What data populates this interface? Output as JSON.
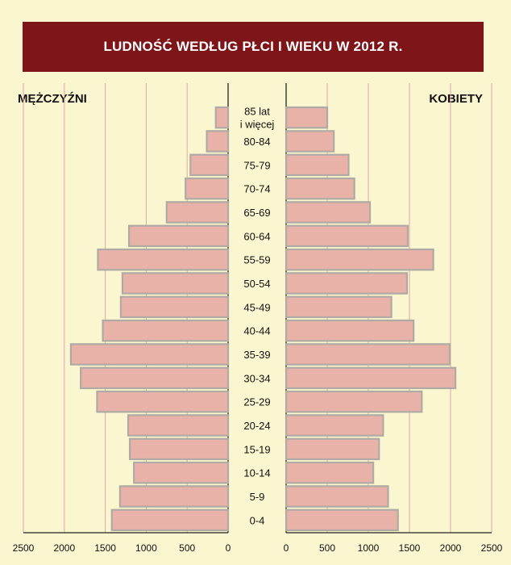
{
  "title": "LUDNOŚĆ WEDŁUG PŁCI I WIEKU W 2012 R.",
  "left_label": "MĘŻCZYŹNI",
  "right_label": "KOBIETY",
  "colors": {
    "title_bg": "#7e1518",
    "background": "#faf6cf",
    "bar_fill": "#e8b2a8",
    "bar_stroke": "#b0aaa5",
    "grid": "#e3a6a0"
  },
  "chart_data": {
    "type": "bar",
    "orientation": "horizontal-pyramid",
    "title": "LUDNOŚĆ WEDŁUG PŁCI I WIEKU W 2012 R.",
    "categories": [
      "0-4",
      "5-9",
      "10-14",
      "15-19",
      "20-24",
      "25-29",
      "30-34",
      "35-39",
      "40-44",
      "45-49",
      "50-54",
      "55-59",
      "60-64",
      "65-69",
      "70-74",
      "75-79",
      "80-84",
      "85 lat\ni więcej"
    ],
    "series": [
      {
        "name": "MĘŻCZYŹNI",
        "values": [
          1420,
          1320,
          1150,
          1200,
          1220,
          1600,
          1800,
          1920,
          1530,
          1310,
          1290,
          1590,
          1210,
          750,
          520,
          460,
          260,
          150
        ]
      },
      {
        "name": "KOBIETY",
        "values": [
          1360,
          1240,
          1060,
          1130,
          1180,
          1650,
          2060,
          1990,
          1550,
          1280,
          1470,
          1790,
          1480,
          1020,
          830,
          760,
          580,
          500
        ]
      }
    ],
    "xlim": [
      0,
      2500
    ],
    "x_ticks": [
      "2500",
      "2000",
      "1500",
      "1000",
      "500",
      "0",
      "0",
      "500",
      "1000",
      "1500",
      "2000",
      "2500"
    ],
    "grid": true
  }
}
